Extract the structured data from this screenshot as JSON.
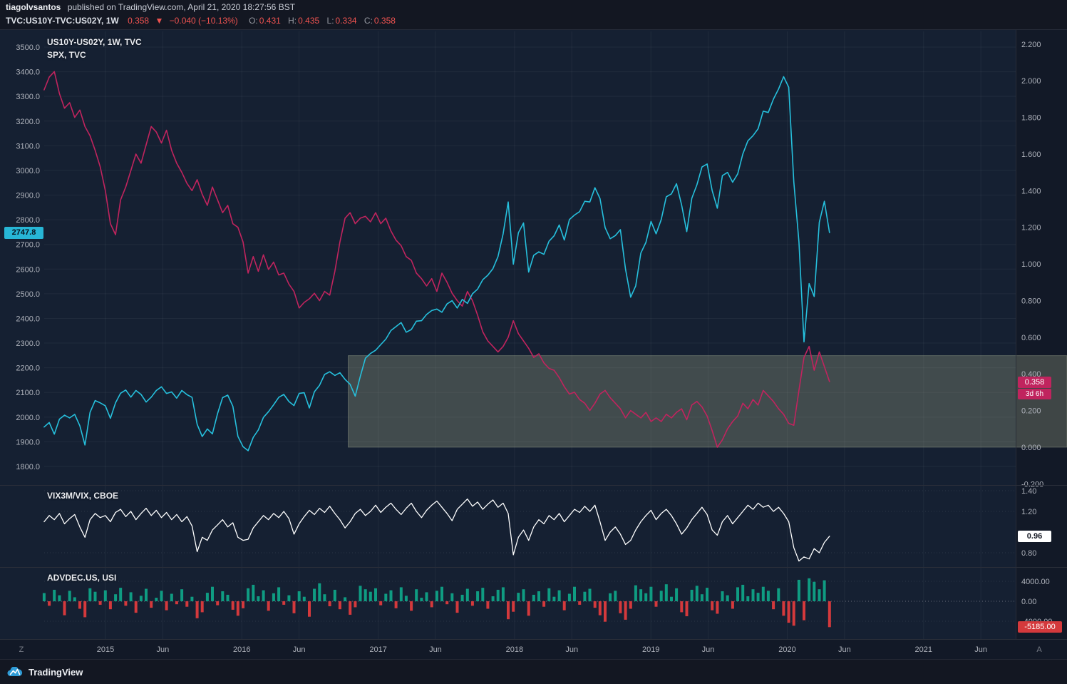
{
  "header": {
    "publisher_name": "tiagolvsantos",
    "publisher_rest": "published on TradingView.com, April 21, 2020 18:27:56 BST",
    "symbol_title": "TVC:US10Y-TVC:US02Y, 1W",
    "last": "0.358",
    "direction_icon": "▼",
    "change": "−0.040 (−10.13%)",
    "ohlc": [
      {
        "label": "O:",
        "value": "0.431"
      },
      {
        "label": "H:",
        "value": "0.435"
      },
      {
        "label": "L:",
        "value": "0.334"
      },
      {
        "label": "C:",
        "value": "0.358"
      }
    ]
  },
  "legends": {
    "main_1": "US10Y-US02Y, 1W, TVC",
    "main_2": "SPX, TVC",
    "vix": "VIX3M/VIX, CBOE",
    "advdec": "ADVDEC.US, USI"
  },
  "badges": {
    "spx_last": "2747.8",
    "spread_last": "0.358",
    "spread_countdown": "3d 6h",
    "vix_last": "0.96",
    "advdec_last": "-5185.00"
  },
  "time_axis": {
    "left_label": "Z",
    "right_label": "A",
    "ticks": [
      {
        "t": 2015.0,
        "label": "2015"
      },
      {
        "t": 2015.42,
        "label": "Jun"
      },
      {
        "t": 2016.0,
        "label": "2016"
      },
      {
        "t": 2016.42,
        "label": "Jun"
      },
      {
        "t": 2017.0,
        "label": "2017"
      },
      {
        "t": 2017.42,
        "label": "Jun"
      },
      {
        "t": 2018.0,
        "label": "2018"
      },
      {
        "t": 2018.42,
        "label": "Jun"
      },
      {
        "t": 2019.0,
        "label": "2019"
      },
      {
        "t": 2019.42,
        "label": "Jun"
      },
      {
        "t": 2020.0,
        "label": "2020"
      },
      {
        "t": 2020.42,
        "label": "Jun"
      },
      {
        "t": 2021.0,
        "label": "2021"
      },
      {
        "t": 2021.42,
        "label": "Jun"
      }
    ]
  },
  "chart_data": [
    {
      "pane": "main",
      "type": "line",
      "title": "US10Y-US02Y, 1W, TVC / SPX, TVC",
      "x_range": [
        2014.55,
        2020.31
      ],
      "left_axis": {
        "min": 1800,
        "max": 3500,
        "ticks": [
          {
            "v": 3500,
            "label": "3500.0"
          },
          {
            "v": 3400,
            "label": "3400.0"
          },
          {
            "v": 3300,
            "label": "3300.0"
          },
          {
            "v": 3200,
            "label": "3200.0"
          },
          {
            "v": 3100,
            "label": "3100.0"
          },
          {
            "v": 3000,
            "label": "3000.0"
          },
          {
            "v": 2900,
            "label": "2900.0"
          },
          {
            "v": 2800,
            "label": "2800.0"
          },
          {
            "v": 2700,
            "label": "2700.0"
          },
          {
            "v": 2600,
            "label": "2600.0"
          },
          {
            "v": 2500,
            "label": "2500.0"
          },
          {
            "v": 2400,
            "label": "2400.0"
          },
          {
            "v": 2300,
            "label": "2300.0"
          },
          {
            "v": 2200,
            "label": "2200.0"
          },
          {
            "v": 2100,
            "label": "2100.0"
          },
          {
            "v": 2000,
            "label": "2000.0"
          },
          {
            "v": 1900,
            "label": "1900.0"
          },
          {
            "v": 1800,
            "label": "1800.0"
          }
        ]
      },
      "right_axis": {
        "min": -0.2,
        "max": 2.2,
        "ticks": [
          {
            "v": 2.2,
            "label": "2.200"
          },
          {
            "v": 2.0,
            "label": "2.000"
          },
          {
            "v": 1.8,
            "label": "1.800"
          },
          {
            "v": 1.6,
            "label": "1.600"
          },
          {
            "v": 1.4,
            "label": "1.400"
          },
          {
            "v": 1.2,
            "label": "1.200"
          },
          {
            "v": 1.0,
            "label": "1.000"
          },
          {
            "v": 0.8,
            "label": "0.800"
          },
          {
            "v": 0.6,
            "label": "0.600"
          },
          {
            "v": 0.4,
            "label": "0.400"
          },
          {
            "v": 0.2,
            "label": "0.200"
          },
          {
            "v": 0.0,
            "label": "0.000"
          },
          {
            "v": -0.2,
            "label": "-0.200"
          }
        ]
      },
      "annotation_box": {
        "x_start": 2016.78,
        "y_top": 0.5,
        "y_bottom": 0.0,
        "scale": "right",
        "fill": "rgba(168,176,144,0.30)"
      },
      "series": [
        {
          "name": "SPX",
          "scale": "left",
          "color": "#26c0dd",
          "last_label": "2747.8",
          "values": [
            1960,
            1978,
            1931,
            1992,
            2008,
            1997,
            2011,
            1965,
            1887,
            2019,
            2067,
            2058,
            2046,
            1995,
            2058,
            2097,
            2110,
            2081,
            2108,
            2092,
            2061,
            2081,
            2108,
            2123,
            2096,
            2102,
            2077,
            2108,
            2091,
            2080,
            1971,
            1921,
            1952,
            1932,
            2014,
            2079,
            2089,
            2044,
            1922,
            1880,
            1864,
            1918,
            1948,
            1999,
            2022,
            2050,
            2080,
            2092,
            2063,
            2047,
            2096,
            2099,
            2037,
            2103,
            2129,
            2173,
            2184,
            2169,
            2180,
            2153,
            2133,
            2085,
            2165,
            2239,
            2258,
            2271,
            2294,
            2316,
            2351,
            2367,
            2383,
            2344,
            2355,
            2389,
            2391,
            2416,
            2432,
            2438,
            2425,
            2459,
            2472,
            2442,
            2477,
            2461,
            2500,
            2519,
            2557,
            2575,
            2602,
            2651,
            2743,
            2872,
            2620,
            2747,
            2787,
            2588,
            2656,
            2670,
            2660,
            2713,
            2735,
            2779,
            2718,
            2801,
            2819,
            2833,
            2875,
            2872,
            2930,
            2886,
            2768,
            2723,
            2736,
            2760,
            2600,
            2486,
            2532,
            2665,
            2708,
            2793,
            2743,
            2801,
            2893,
            2905,
            2946,
            2860,
            2752,
            2887,
            2942,
            3014,
            3026,
            2918,
            2847,
            2979,
            2992,
            2952,
            2986,
            3067,
            3120,
            3141,
            3169,
            3240,
            3235,
            3289,
            3330,
            3380,
            3337,
            2954,
            2711,
            2305,
            2541,
            2489,
            2790,
            2875,
            2748
          ]
        },
        {
          "name": "US10Y-US02Y",
          "scale": "right",
          "color": "#c0245e",
          "last_label": "0.358",
          "countdown": "3d 6h",
          "values": [
            1.95,
            2.02,
            2.05,
            1.93,
            1.85,
            1.88,
            1.8,
            1.84,
            1.75,
            1.7,
            1.62,
            1.53,
            1.4,
            1.22,
            1.16,
            1.35,
            1.42,
            1.51,
            1.6,
            1.55,
            1.65,
            1.75,
            1.72,
            1.66,
            1.73,
            1.62,
            1.55,
            1.5,
            1.44,
            1.4,
            1.46,
            1.38,
            1.32,
            1.42,
            1.35,
            1.28,
            1.32,
            1.22,
            1.2,
            1.12,
            0.95,
            1.04,
            0.96,
            1.05,
            0.97,
            1.01,
            0.94,
            0.95,
            0.89,
            0.85,
            0.76,
            0.79,
            0.81,
            0.84,
            0.8,
            0.85,
            0.83,
            0.96,
            1.12,
            1.25,
            1.28,
            1.22,
            1.25,
            1.26,
            1.23,
            1.28,
            1.22,
            1.25,
            1.18,
            1.13,
            1.1,
            1.04,
            1.02,
            0.95,
            0.92,
            0.88,
            0.92,
            0.85,
            0.95,
            0.9,
            0.84,
            0.8,
            0.77,
            0.85,
            0.8,
            0.72,
            0.63,
            0.58,
            0.55,
            0.52,
            0.55,
            0.6,
            0.69,
            0.62,
            0.58,
            0.54,
            0.49,
            0.51,
            0.46,
            0.43,
            0.42,
            0.38,
            0.33,
            0.29,
            0.3,
            0.26,
            0.24,
            0.2,
            0.24,
            0.29,
            0.31,
            0.27,
            0.24,
            0.21,
            0.16,
            0.2,
            0.18,
            0.16,
            0.19,
            0.14,
            0.16,
            0.14,
            0.18,
            0.16,
            0.19,
            0.21,
            0.15,
            0.23,
            0.25,
            0.22,
            0.17,
            0.09,
            0.0,
            0.04,
            0.1,
            0.14,
            0.17,
            0.24,
            0.21,
            0.26,
            0.23,
            0.31,
            0.28,
            0.25,
            0.21,
            0.18,
            0.13,
            0.12,
            0.31,
            0.49,
            0.55,
            0.42,
            0.52,
            0.44,
            0.358
          ]
        }
      ]
    },
    {
      "pane": "vix",
      "type": "line",
      "title": "VIX3M/VIX, CBOE",
      "x_range": [
        2014.55,
        2020.31
      ],
      "axis": {
        "ticks": [
          {
            "v": 1.4,
            "label": "1.40"
          },
          {
            "v": 1.2,
            "label": "1.20"
          },
          {
            "v": 0.8,
            "label": "0.80"
          }
        ]
      },
      "series": [
        {
          "name": "VIX3M/VIX",
          "color": "#ffffff",
          "last_label": "0.96",
          "values": [
            1.1,
            1.16,
            1.12,
            1.18,
            1.08,
            1.13,
            1.17,
            1.05,
            0.95,
            1.12,
            1.18,
            1.14,
            1.16,
            1.1,
            1.19,
            1.22,
            1.15,
            1.2,
            1.12,
            1.18,
            1.23,
            1.16,
            1.21,
            1.14,
            1.19,
            1.12,
            1.17,
            1.1,
            1.15,
            1.06,
            0.81,
            0.95,
            0.92,
            1.02,
            1.07,
            1.12,
            1.05,
            1.09,
            0.95,
            0.92,
            0.93,
            1.04,
            1.1,
            1.16,
            1.12,
            1.18,
            1.14,
            1.2,
            1.13,
            0.98,
            1.08,
            1.15,
            1.21,
            1.17,
            1.23,
            1.19,
            1.25,
            1.18,
            1.12,
            1.04,
            1.1,
            1.18,
            1.22,
            1.16,
            1.2,
            1.26,
            1.19,
            1.24,
            1.28,
            1.22,
            1.17,
            1.23,
            1.28,
            1.2,
            1.14,
            1.21,
            1.26,
            1.3,
            1.24,
            1.18,
            1.11,
            1.22,
            1.27,
            1.32,
            1.25,
            1.29,
            1.22,
            1.27,
            1.31,
            1.24,
            1.28,
            1.18,
            0.78,
            0.95,
            1.02,
            0.92,
            1.05,
            1.12,
            1.08,
            1.16,
            1.12,
            1.18,
            1.1,
            1.16,
            1.22,
            1.19,
            1.25,
            1.2,
            1.26,
            1.1,
            0.92,
            1.0,
            1.05,
            0.98,
            0.88,
            0.92,
            1.02,
            1.1,
            1.16,
            1.21,
            1.12,
            1.18,
            1.22,
            1.16,
            1.08,
            0.98,
            1.04,
            1.12,
            1.18,
            1.24,
            1.17,
            1.02,
            0.97,
            1.1,
            1.16,
            1.08,
            1.14,
            1.2,
            1.26,
            1.22,
            1.28,
            1.24,
            1.26,
            1.2,
            1.24,
            1.18,
            1.1,
            0.85,
            0.72,
            0.76,
            0.74,
            0.84,
            0.8,
            0.9,
            0.96
          ]
        }
      ]
    },
    {
      "pane": "advdec",
      "type": "bar",
      "title": "ADVDEC.US, USI",
      "x_range": [
        2014.55,
        2020.31
      ],
      "axis": {
        "ticks": [
          {
            "v": 4000,
            "label": "4000.00"
          },
          {
            "v": 0,
            "label": "0.00"
          },
          {
            "v": -4000,
            "label": "-4000.00"
          }
        ]
      },
      "series": [
        {
          "name": "ADVDEC.US",
          "up_color": "#0f9c82",
          "down_color": "#d4393c",
          "last_label": "-5185.00",
          "values": [
            1650,
            -900,
            2300,
            1200,
            -2800,
            2100,
            800,
            -1500,
            -3200,
            2600,
            1900,
            -700,
            2200,
            -1600,
            1400,
            2700,
            -900,
            1800,
            -2300,
            1100,
            2500,
            -1300,
            700,
            2100,
            -1800,
            1500,
            -600,
            2400,
            -1100,
            900,
            -3400,
            -2200,
            1700,
            2900,
            -800,
            2000,
            1300,
            -1700,
            -2900,
            -1400,
            2600,
            3300,
            1000,
            2200,
            -1900,
            1600,
            2800,
            -700,
            1200,
            -2400,
            2000,
            900,
            -3100,
            2500,
            3600,
            1400,
            -1000,
            2300,
            -1600,
            800,
            -2700,
            -1200,
            3100,
            2400,
            1900,
            2600,
            -800,
            1500,
            2200,
            -1400,
            2800,
            1100,
            -1900,
            2400,
            700,
            1800,
            -1200,
            2100,
            2900,
            -600,
            1600,
            -2300,
            1300,
            2500,
            -900,
            2000,
            2700,
            -1500,
            1000,
            2300,
            2800,
            -3600,
            -2100,
            1700,
            2400,
            -2900,
            1300,
            2000,
            -1100,
            2600,
            900,
            2200,
            -1800,
            1500,
            2900,
            -700,
            1900,
            2500,
            -1300,
            -2800,
            -4100,
            1600,
            2100,
            -2400,
            -3700,
            -1500,
            3200,
            2400,
            1600,
            2900,
            -1100,
            2100,
            3400,
            900,
            2600,
            -2200,
            -3000,
            2300,
            3100,
            1400,
            2700,
            -1800,
            -2500,
            2000,
            1200,
            -1500,
            2800,
            3300,
            1000,
            2400,
            1700,
            2900,
            2100,
            -1600,
            2600,
            -2900,
            -4300,
            -4900,
            4300,
            -3800,
            4600,
            3900,
            2400,
            4200,
            -5185
          ]
        }
      ]
    }
  ],
  "footer": {
    "brand": "TradingView"
  },
  "colors": {
    "spx_cyan": "#26c0dd",
    "spread_magenta": "#c0245e",
    "vix_white": "#ffffff",
    "adv_up_green": "#0f9c82",
    "adv_down_red": "#d4393c",
    "quote_red": "#ef5350",
    "pane_bg": "#152032",
    "chrome_bg": "#131722"
  }
}
